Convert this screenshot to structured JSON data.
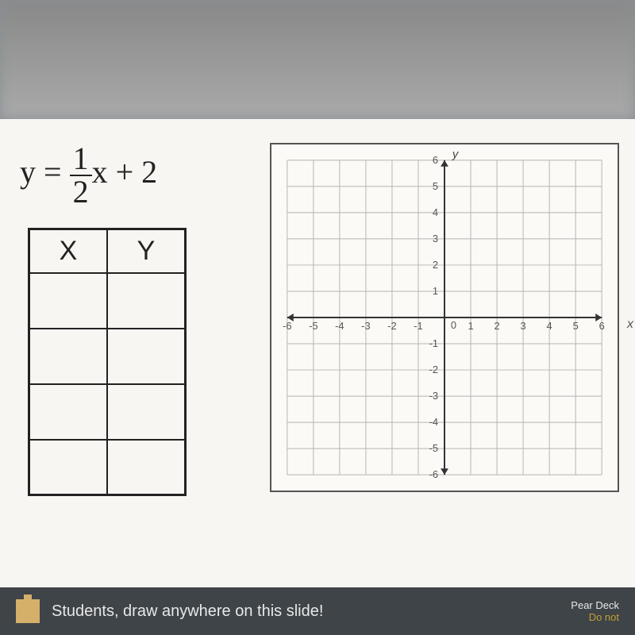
{
  "equation": {
    "lhs": "y",
    "numerator": "1",
    "denominator": "2",
    "var": "x",
    "constant": "2"
  },
  "table": {
    "headers": [
      "X",
      "Y"
    ],
    "rows": [
      [
        "",
        ""
      ],
      [
        "",
        ""
      ],
      [
        "",
        ""
      ],
      [
        "",
        ""
      ]
    ]
  },
  "graph": {
    "xmin": -6,
    "xmax": 6,
    "ymin": -6,
    "ymax": 6,
    "tick_step": 1,
    "xticks": [
      -6,
      -5,
      -4,
      -3,
      -2,
      -1,
      1,
      2,
      3,
      4,
      5,
      6
    ],
    "yticks": [
      -6,
      -5,
      -4,
      -3,
      -2,
      -1,
      1,
      2,
      3,
      4,
      5,
      6
    ],
    "origin_label": "0",
    "xlabel": "x",
    "ylabel": "y",
    "grid_color": "#b5b5b5",
    "axis_color": "#333333",
    "background": "#fcfaf6"
  },
  "bottom_bar": {
    "text": "Students, draw anywhere on this slide!",
    "brand": "Pear Deck",
    "sub": "Do not"
  }
}
